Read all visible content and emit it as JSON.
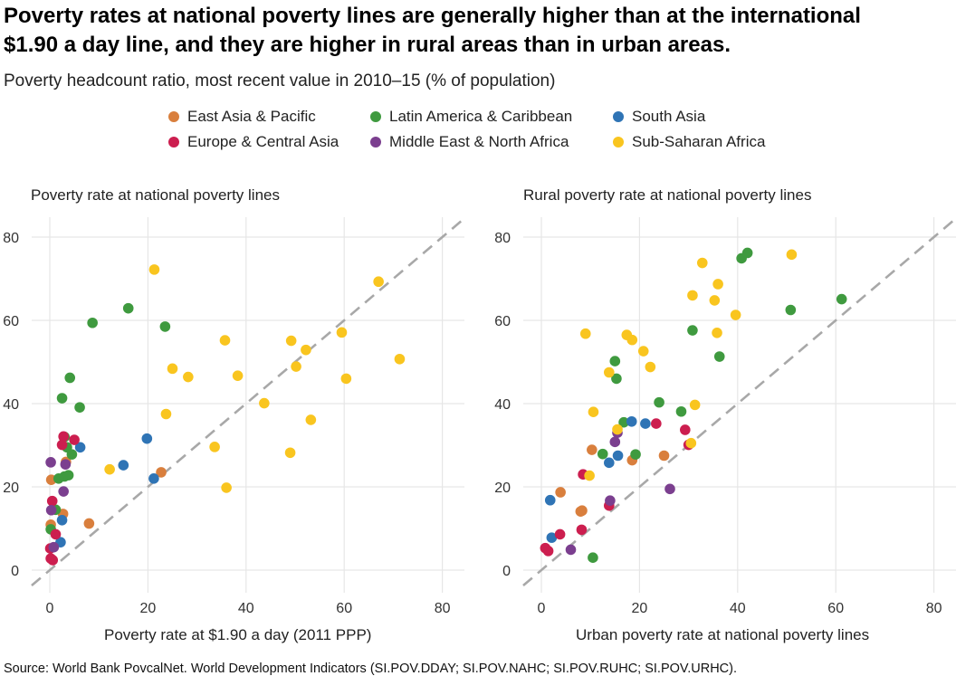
{
  "title": "Poverty rates at national poverty lines are generally higher than at the international\n$1.90 a day line, and they are higher in rural areas than in urban areas.",
  "subtitle": "Poverty headcount ratio, most recent value in 2010–15 (% of population)",
  "source": "Source: World Bank PovcalNet. World Development Indicators (SI.POV.DDAY; SI.POV.NAHC; SI.POV.RUHC; SI.POV.URHC).",
  "legend": [
    {
      "name": "East Asia & Pacific",
      "color": "#d97f3d"
    },
    {
      "name": "Latin America & Caribbean",
      "color": "#3f9a3f"
    },
    {
      "name": "South Asia",
      "color": "#2f74b5"
    },
    {
      "name": "Europe & Central Asia",
      "color": "#cc1e4f"
    },
    {
      "name": "Middle East & North Africa",
      "color": "#7b3f8f"
    },
    {
      "name": "Sub-Saharan Africa",
      "color": "#f9c51f"
    }
  ],
  "chart_data": [
    {
      "type": "scatter",
      "title": "Poverty rate at national poverty lines",
      "xlabel": "Poverty rate at $1.90 a day (2011 PPP)",
      "ylabel": "",
      "xlim": [
        0,
        80
      ],
      "ylim": [
        0,
        80
      ],
      "xticks": [
        0,
        20,
        40,
        60,
        80
      ],
      "yticks": [
        0,
        20,
        40,
        60,
        80
      ],
      "grid": true,
      "reference_line": "y = x (dashed)",
      "series": [
        {
          "name": "East Asia & Pacific",
          "points": [
            [
              0.3,
              21.7
            ],
            [
              0.2,
              10.9
            ],
            [
              2.7,
              13.5
            ],
            [
              3.3,
              26
            ],
            [
              8,
              11.2
            ],
            [
              22.7,
              23.5
            ]
          ]
        },
        {
          "name": "Latin America & Caribbean",
          "points": [
            [
              0.2,
              9.8
            ],
            [
              1.2,
              14.5
            ],
            [
              2.5,
              41.3
            ],
            [
              1.8,
              22
            ],
            [
              3,
              22.5
            ],
            [
              3,
              32
            ],
            [
              3.5,
              29.5
            ],
            [
              3.8,
              22.8
            ],
            [
              4.1,
              46.2
            ],
            [
              4.5,
              27.8
            ],
            [
              6.1,
              39.1
            ],
            [
              8.7,
              59.4
            ],
            [
              16,
              62.9
            ],
            [
              23.5,
              58.5
            ]
          ]
        },
        {
          "name": "South Asia",
          "points": [
            [
              2.2,
              6.7
            ],
            [
              2.5,
              12
            ],
            [
              6.2,
              29.5
            ],
            [
              15,
              25.2
            ],
            [
              19.8,
              31.6
            ],
            [
              21.2,
              22
            ]
          ]
        },
        {
          "name": "Europe & Central Asia",
          "points": [
            [
              0.1,
              5.2
            ],
            [
              0.2,
              2.8
            ],
            [
              0.5,
              16.6
            ],
            [
              0.6,
              2.4
            ],
            [
              1.2,
              8.6
            ],
            [
              2.5,
              30.1
            ],
            [
              2.8,
              32.1
            ],
            [
              5,
              31.3
            ]
          ]
        },
        {
          "name": "Middle East & North Africa",
          "points": [
            [
              0.2,
              25.9
            ],
            [
              0.3,
              14.4
            ],
            [
              0.8,
              5.5
            ],
            [
              2.8,
              18.9
            ],
            [
              3.2,
              25.4
            ]
          ]
        },
        {
          "name": "Sub-Saharan Africa",
          "points": [
            [
              12.2,
              24.2
            ],
            [
              21.3,
              72.2
            ],
            [
              23.7,
              37.5
            ],
            [
              25,
              48.4
            ],
            [
              28.2,
              46.4
            ],
            [
              33.6,
              29.6
            ],
            [
              35.7,
              55.2
            ],
            [
              36,
              19.8
            ],
            [
              38.3,
              46.7
            ],
            [
              43.7,
              40.1
            ],
            [
              49,
              28.2
            ],
            [
              49.2,
              55.1
            ],
            [
              50.2,
              48.9
            ],
            [
              52.2,
              52.9
            ],
            [
              53.2,
              36.1
            ],
            [
              59.5,
              57.1
            ],
            [
              60.4,
              46
            ],
            [
              67,
              69.3
            ],
            [
              71.3,
              50.7
            ]
          ]
        }
      ]
    },
    {
      "type": "scatter",
      "title": "Rural poverty rate at national poverty lines",
      "xlabel": "Urban poverty rate at national poverty lines",
      "ylabel": "",
      "xlim": [
        0,
        80
      ],
      "ylim": [
        0,
        80
      ],
      "xticks": [
        0,
        20,
        40,
        60,
        80
      ],
      "yticks": [
        0,
        20,
        40,
        60,
        80
      ],
      "grid": true,
      "reference_line": "y = x (dashed)",
      "series": [
        {
          "name": "East Asia & Pacific",
          "points": [
            [
              3.9,
              18.7
            ],
            [
              8,
              14.1
            ],
            [
              8.3,
              14.3
            ],
            [
              10.3,
              28.9
            ],
            [
              18.5,
              26.4
            ],
            [
              25,
              27.5
            ]
          ]
        },
        {
          "name": "Latin America & Caribbean",
          "points": [
            [
              10.5,
              3
            ],
            [
              12.5,
              27.9
            ],
            [
              15,
              50.2
            ],
            [
              15.3,
              46
            ],
            [
              16.8,
              35.5
            ],
            [
              19.2,
              27.8
            ],
            [
              24,
              40.3
            ],
            [
              28.5,
              38.1
            ],
            [
              30.8,
              57.6
            ],
            [
              36.3,
              51.3
            ],
            [
              40.8,
              74.9
            ],
            [
              42,
              76.2
            ],
            [
              50.8,
              62.5
            ],
            [
              61.2,
              65.1
            ]
          ]
        },
        {
          "name": "South Asia",
          "points": [
            [
              1.8,
              16.8
            ],
            [
              2.1,
              7.8
            ],
            [
              13.8,
              25.8
            ],
            [
              15.6,
              27.5
            ],
            [
              18.4,
              35.7
            ],
            [
              21.2,
              35.2
            ]
          ]
        },
        {
          "name": "Europe & Central Asia",
          "points": [
            [
              0.8,
              5.3
            ],
            [
              1.4,
              4.6
            ],
            [
              3.8,
              8.6
            ],
            [
              8.2,
              9.7
            ],
            [
              8.5,
              23
            ],
            [
              13.8,
              15.5
            ],
            [
              23.4,
              35.2
            ],
            [
              29.3,
              33.7
            ],
            [
              30,
              30.1
            ]
          ]
        },
        {
          "name": "Middle East & North Africa",
          "points": [
            [
              6,
              4.9
            ],
            [
              14,
              16.7
            ],
            [
              15,
              30.8
            ],
            [
              15.5,
              33
            ],
            [
              26.2,
              19.5
            ]
          ]
        },
        {
          "name": "Sub-Saharan Africa",
          "points": [
            [
              9,
              56.8
            ],
            [
              9.8,
              22.7
            ],
            [
              10.6,
              38
            ],
            [
              13.8,
              47.5
            ],
            [
              15.5,
              33.8
            ],
            [
              17.4,
              56.5
            ],
            [
              18.5,
              55.3
            ],
            [
              20.8,
              52.6
            ],
            [
              22.2,
              48.8
            ],
            [
              30.5,
              30.5
            ],
            [
              30.8,
              66
            ],
            [
              31.3,
              39.7
            ],
            [
              32.8,
              73.8
            ],
            [
              35.3,
              64.8
            ],
            [
              35.8,
              57
            ],
            [
              36,
              68.7
            ],
            [
              39.6,
              61.3
            ],
            [
              51,
              75.8
            ]
          ]
        }
      ]
    }
  ]
}
